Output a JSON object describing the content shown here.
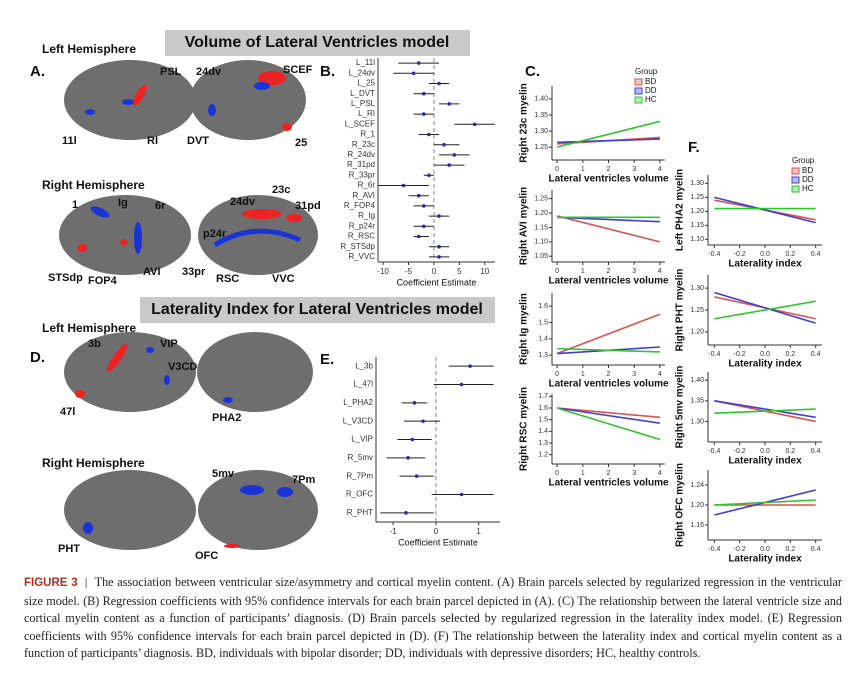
{
  "banners": [
    "Volume of Lateral Ventricles model",
    "Laterality Index for Lateral Ventricles model"
  ],
  "panel_a": {
    "letter": "A.",
    "left_title": "Left Hemisphere",
    "left_labels": [
      "PSL",
      "24dv",
      "SCEF",
      "11l",
      "RI",
      "DVT",
      "25"
    ],
    "right_title": "Right Hemisphere",
    "right_labels": [
      "1",
      "Ig",
      "6r",
      "24dv",
      "23c",
      "31pd",
      "p24r",
      "STSdp",
      "FOP4",
      "AVI",
      "33pr",
      "RSC",
      "VVC"
    ]
  },
  "panel_d": {
    "letter": "D.",
    "left_title": "Left Hemisphere",
    "left_labels": [
      "3b",
      "VIP",
      "V3CD",
      "47l",
      "PHA2"
    ],
    "right_title": "Right Hemisphere",
    "right_labels": [
      "5mv",
      "7Pm",
      "PHT",
      "OFC"
    ]
  },
  "chart_data": [
    {
      "type": "forest",
      "panel": "B.",
      "xlabel": "Coefficient Estimate",
      "categories": [
        "L_11l",
        "L_24dv",
        "L_25",
        "L_DVT",
        "L_PSL",
        "L_RI",
        "L_SCEF",
        "R_1",
        "R_23c",
        "R_24dv",
        "R_31pd",
        "R_33pr",
        "R_6r",
        "R_AVI",
        "R_FOP4",
        "R_Ig",
        "R_p24r",
        "R_RSC",
        "R_STSdp",
        "R_VVC"
      ],
      "values": [
        -3,
        -4,
        1,
        -2,
        3,
        -2,
        8,
        -1,
        2,
        4,
        3,
        -1,
        -6,
        -3,
        -2,
        1,
        -2,
        -3,
        1,
        1
      ],
      "ci_low": [
        -7,
        -8,
        -1,
        -4,
        1,
        -4,
        4,
        -3,
        0,
        1,
        0,
        -2,
        -11,
        -5,
        -4,
        -1,
        -4,
        -4,
        -1,
        -1
      ],
      "ci_high": [
        1,
        0,
        3,
        0,
        5,
        0,
        12,
        1,
        5,
        7,
        6,
        0,
        -1,
        -1,
        0,
        3,
        0,
        -1,
        3,
        3
      ],
      "xlim": [
        -11,
        12
      ],
      "xticks": [
        -10,
        -5,
        0,
        5,
        10
      ],
      "color": "#2a2aa8"
    },
    {
      "type": "forest",
      "panel": "E.",
      "xlabel": "Coefficient Estimate",
      "categories": [
        "L_3b",
        "L_47l",
        "L_PHA2",
        "L_V3CD",
        "L_VIP",
        "R_5mv",
        "R_7Pm",
        "R_OFC",
        "R_PHT"
      ],
      "values": [
        0.8,
        0.6,
        -0.5,
        -0.3,
        -0.55,
        -0.65,
        -0.45,
        0.6,
        -0.7
      ],
      "ci_low": [
        0.3,
        -0.05,
        -0.8,
        -0.75,
        -0.9,
        -1.15,
        -0.85,
        -0.1,
        -1.3
      ],
      "ci_high": [
        1.35,
        1.35,
        -0.2,
        0.1,
        -0.1,
        -0.25,
        -0.05,
        1.35,
        -0.05
      ],
      "xlim": [
        -1.4,
        1.5
      ],
      "xticks": [
        -1,
        0,
        1
      ],
      "color": "#2a2aa8"
    },
    {
      "type": "line",
      "panel": "C.",
      "ylabel": "Right 23c myelin",
      "xlabel": "Lateral ventricles volume",
      "legend_title": "Group",
      "x": [
        0,
        4
      ],
      "xlim": [
        -0.2,
        4.2
      ],
      "xticks": [
        0,
        1,
        2,
        3,
        4
      ],
      "ylim": [
        1.21,
        1.44
      ],
      "yticks": [
        1.25,
        {
          "value": 1.3,
          "label": "1.30"
        },
        1.35,
        {
          "value": 1.4,
          "label": "1.40"
        }
      ],
      "series": [
        {
          "name": "BD",
          "color": "#d9534f",
          "values": [
            1.26,
            1.28
          ]
        },
        {
          "name": "DD",
          "color": "#4040d0",
          "values": [
            1.265,
            1.275
          ]
        },
        {
          "name": "HC",
          "color": "#2ec42e",
          "values": [
            1.25,
            1.33
          ]
        }
      ]
    },
    {
      "type": "line",
      "ylabel": "Right AVI myelin",
      "xlabel": "Lateral ventricles volume",
      "x": [
        0,
        4
      ],
      "xlim": [
        -0.2,
        4.2
      ],
      "xticks": [
        0,
        1,
        2,
        3,
        4
      ],
      "ylim": [
        1.03,
        1.28
      ],
      "yticks": [
        1.05,
        {
          "value": 1.1,
          "label": "1.10"
        },
        1.15,
        {
          "value": 1.2,
          "label": "1.20"
        },
        1.25
      ],
      "series": [
        {
          "color": "#d9534f",
          "values": [
            1.19,
            1.1
          ]
        },
        {
          "color": "#4040d0",
          "values": [
            1.185,
            1.17
          ]
        },
        {
          "color": "#2ec42e",
          "values": [
            1.185,
            1.185
          ]
        }
      ]
    },
    {
      "type": "line",
      "ylabel": "Right Ig myelin",
      "xlabel": "Lateral ventricles volume",
      "x": [
        0,
        4
      ],
      "xlim": [
        -0.2,
        4.2
      ],
      "xticks": [
        0,
        1,
        2,
        3,
        4
      ],
      "ylim": [
        1.24,
        1.68
      ],
      "yticks": [
        1.3,
        1.4,
        1.5,
        1.6
      ],
      "series": [
        {
          "color": "#d9534f",
          "values": [
            1.31,
            1.55
          ]
        },
        {
          "color": "#4040d0",
          "values": [
            1.31,
            1.35
          ]
        },
        {
          "color": "#2ec42e",
          "values": [
            1.34,
            1.32
          ]
        }
      ]
    },
    {
      "type": "line",
      "ylabel": "Right RSC myelin",
      "xlabel": "Lateral ventricles volume",
      "x": [
        0,
        4
      ],
      "xlim": [
        -0.2,
        4.2
      ],
      "xticks": [
        0,
        1,
        2,
        3,
        4
      ],
      "ylim": [
        1.12,
        1.72
      ],
      "yticks": [
        1.2,
        1.3,
        1.4,
        1.5,
        1.6,
        1.7
      ],
      "series": [
        {
          "color": "#d9534f",
          "values": [
            1.6,
            1.52
          ]
        },
        {
          "color": "#4040d0",
          "values": [
            1.6,
            1.47
          ]
        },
        {
          "color": "#2ec42e",
          "values": [
            1.6,
            1.33
          ]
        }
      ]
    },
    {
      "type": "line",
      "panel": "F.",
      "ylabel": "Left PHA2 myelin",
      "xlabel": "Laterality index",
      "legend_title": "Group",
      "x": [
        -0.4,
        0.4
      ],
      "xlim": [
        -0.45,
        0.45
      ],
      "xticks": [
        -0.4,
        -0.2,
        {
          "value": 0,
          "label": "0.0"
        },
        0.2,
        0.4
      ],
      "ylim": [
        1.08,
        1.33
      ],
      "yticks": [
        {
          "value": 1.1,
          "label": "1.10"
        },
        1.15,
        {
          "value": 1.2,
          "label": "1.20"
        },
        1.25,
        {
          "value": 1.3,
          "label": "1.30"
        }
      ],
      "series": [
        {
          "name": "BD",
          "color": "#d9534f",
          "values": [
            1.24,
            1.17
          ]
        },
        {
          "name": "DD",
          "color": "#4040d0",
          "values": [
            1.25,
            1.16
          ]
        },
        {
          "name": "HC",
          "color": "#2ec42e",
          "values": [
            1.21,
            1.21
          ]
        }
      ]
    },
    {
      "type": "line",
      "ylabel": "Right PHT myelin",
      "xlabel": "Laterality index",
      "x": [
        -0.4,
        0.4
      ],
      "xlim": [
        -0.45,
        0.45
      ],
      "xticks": [
        -0.4,
        -0.2,
        {
          "value": 0,
          "label": "0.0"
        },
        0.2,
        0.4
      ],
      "ylim": [
        1.17,
        1.33
      ],
      "yticks": [
        {
          "value": 1.2,
          "label": "1.20"
        },
        1.25,
        {
          "value": 1.3,
          "label": "1.30"
        }
      ],
      "series": [
        {
          "color": "#d9534f",
          "values": [
            1.28,
            1.23
          ]
        },
        {
          "color": "#4040d0",
          "values": [
            1.29,
            1.22
          ]
        },
        {
          "color": "#2ec42e",
          "values": [
            1.23,
            1.27
          ]
        }
      ]
    },
    {
      "type": "line",
      "ylabel": "Right 5mv myelin",
      "xlabel": "Laterality index",
      "x": [
        -0.4,
        0.4
      ],
      "xlim": [
        -0.45,
        0.45
      ],
      "xticks": [
        -0.4,
        -0.2,
        {
          "value": 0,
          "label": "0.0"
        },
        0.2,
        0.4
      ],
      "ylim": [
        1.25,
        1.42
      ],
      "yticks": [
        {
          "value": 1.3,
          "label": "1.30"
        },
        1.35,
        {
          "value": 1.4,
          "label": "1.40"
        }
      ],
      "series": [
        {
          "color": "#d9534f",
          "values": [
            1.35,
            1.3
          ]
        },
        {
          "color": "#4040d0",
          "values": [
            1.35,
            1.31
          ]
        },
        {
          "color": "#2ec42e",
          "values": [
            1.32,
            1.33
          ]
        }
      ]
    },
    {
      "type": "line",
      "ylabel": "Right OFC myelin",
      "xlabel": "Laterality index",
      "x": [
        -0.4,
        0.4
      ],
      "xlim": [
        -0.45,
        0.45
      ],
      "xticks": [
        -0.4,
        -0.2,
        {
          "value": 0,
          "label": "0.0"
        },
        0.2,
        0.4
      ],
      "ylim": [
        1.13,
        1.27
      ],
      "yticks": [
        1.16,
        {
          "value": 1.2,
          "label": "1.20"
        },
        1.24
      ],
      "series": [
        {
          "color": "#d9534f",
          "values": [
            1.2,
            1.2
          ]
        },
        {
          "color": "#4040d0",
          "values": [
            1.18,
            1.23
          ]
        },
        {
          "color": "#2ec42e",
          "values": [
            1.2,
            1.21
          ]
        }
      ]
    }
  ],
  "caption": {
    "label": "FIGURE 3",
    "text": "The association between ventricular size/asymmetry and cortical myelin content. (A) Brain parcels selected by regularized regression in the ventricular size model. (B) Regression coefficients with 95% confidence intervals for each brain parcel depicted in (A). (C) The relationship between the lateral ventricle size and cortical myelin content as a function of participants’ diagnosis. (D) Brain parcels selected by regularized regression in the laterality index model. (E) Regression coefficients with 95% confidence intervals for each brain parcel depicted in (D). (F) The relationship between the laterality index and cortical myelin content as a function of participants’ diagnosis. BD, individuals with bipolar disorder; DD, individuals with depressive disorders; HC, healthy controls."
  }
}
